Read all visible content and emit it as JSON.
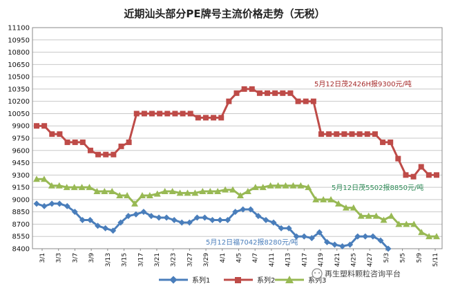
{
  "chart_data": {
    "type": "line",
    "title": "近期汕头部分PE牌号主流价格走势（无税）",
    "xlabel": "",
    "ylabel": "",
    "ylim": [
      8400,
      11100
    ],
    "yticks": [
      8400,
      8550,
      8700,
      8850,
      9000,
      9150,
      9300,
      9450,
      9600,
      9750,
      9900,
      10050,
      10200,
      10350,
      10500,
      10650,
      10800,
      10950,
      11100
    ],
    "grid": "horizontal",
    "legend_position": "bottom",
    "x_tick_labels": [
      "3/1",
      "3/3",
      "3/7",
      "3/9",
      "3/13",
      "3/15",
      "3/17",
      "3/21",
      "3/23",
      "3/27",
      "3/29",
      "4/1",
      "4/5",
      "4/7",
      "4/11",
      "4/13",
      "4/17",
      "4/19",
      "4/21",
      "4/25",
      "4/27",
      "5/3",
      "5/5",
      "5/9",
      "5/11"
    ],
    "series": [
      {
        "name": "系列1",
        "color": "#4a7ebb",
        "marker": "diamond",
        "values": [
          8950,
          8920,
          8950,
          8950,
          8920,
          8850,
          8750,
          8750,
          8680,
          8650,
          8620,
          8720,
          8800,
          8820,
          8850,
          8800,
          8780,
          8780,
          8750,
          8720,
          8720,
          8780,
          8780,
          8750,
          8750,
          8750,
          8850,
          8880,
          8880,
          8800,
          8750,
          8720,
          8650,
          8650,
          8550,
          8550,
          8530,
          8600,
          8480,
          8450,
          8430,
          8450,
          8550,
          8550,
          8550,
          8500,
          8400
        ]
      },
      {
        "name": "系列2",
        "color": "#be4b48",
        "marker": "square",
        "values": [
          9900,
          9900,
          9800,
          9800,
          9700,
          9700,
          9700,
          9600,
          9550,
          9550,
          9550,
          9650,
          9700,
          10050,
          10050,
          10050,
          10050,
          10050,
          10050,
          10050,
          10050,
          10000,
          10000,
          10000,
          10000,
          10200,
          10300,
          10350,
          10350,
          10300,
          10300,
          10300,
          10300,
          10300,
          10200,
          10200,
          10200,
          9800,
          9800,
          9800,
          9800,
          9800,
          9800,
          9800,
          9800,
          9700,
          9700,
          9500,
          9300,
          9280,
          9400,
          9300,
          9300
        ]
      },
      {
        "name": "系列3",
        "color": "#98b954",
        "marker": "triangle",
        "values": [
          9250,
          9250,
          9170,
          9170,
          9150,
          9150,
          9150,
          9150,
          9100,
          9100,
          9100,
          9050,
          9050,
          8950,
          9050,
          9050,
          9070,
          9100,
          9100,
          9080,
          9080,
          9080,
          9100,
          9100,
          9100,
          9120,
          9120,
          9050,
          9100,
          9150,
          9150,
          9170,
          9170,
          9170,
          9170,
          9170,
          9150,
          9000,
          9000,
          9000,
          8950,
          8900,
          8900,
          8800,
          8800,
          8800,
          8750,
          8800,
          8700,
          8700,
          8700,
          8600,
          8550,
          8550
        ]
      }
    ],
    "annotations": [
      {
        "text": "5月12日茂2426H报9300元/吨",
        "color": "#a52a2a"
      },
      {
        "text": "5月12日茂5502报8850元/吨",
        "color": "#2e8b57"
      },
      {
        "text": "5月12日福7042报8280元/吨",
        "color": "#4a7ebb"
      }
    ]
  },
  "watermark": {
    "text": "再生塑料颗粒咨询平台",
    "icon": "wechat-icon"
  }
}
